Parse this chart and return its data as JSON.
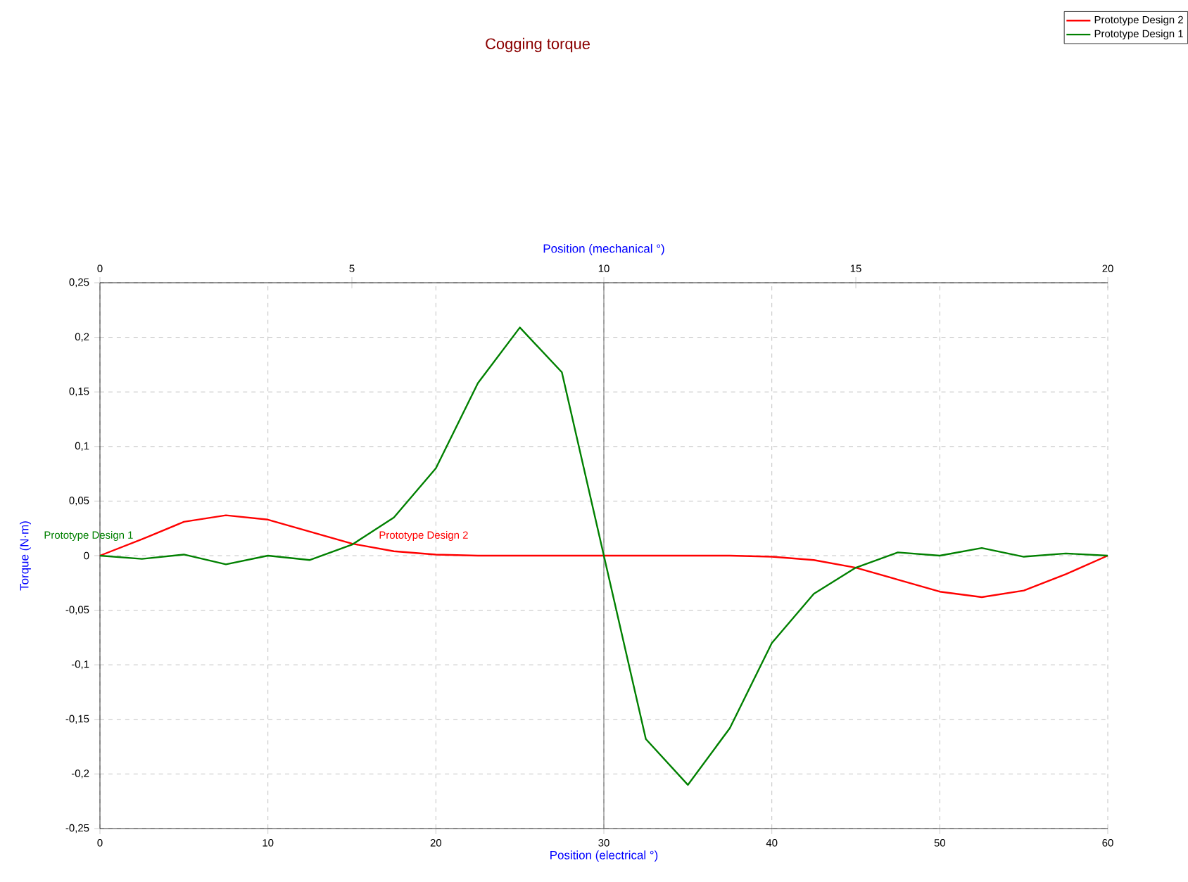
{
  "chart_data": {
    "type": "line",
    "title": "Cogging torque",
    "xlabel": "Position (electrical °)",
    "ylabel": "Torque (N·m)",
    "x2label": "Position (mechanical °)",
    "x": [
      0,
      2.5,
      5,
      7.5,
      10,
      12.5,
      15,
      17.5,
      20,
      22.5,
      25,
      27.5,
      30,
      32.5,
      35,
      37.5,
      40,
      42.5,
      45,
      47.5,
      50,
      52.5,
      55,
      57.5,
      60
    ],
    "series": [
      {
        "name": "Prototype Design 2",
        "color": "#ff0000",
        "values": [
          0,
          0.015,
          0.031,
          0.037,
          0.033,
          0.022,
          0.011,
          0.004,
          0.001,
          0,
          0,
          0,
          0,
          0,
          0,
          0,
          -0.001,
          -0.004,
          -0.011,
          -0.022,
          -0.033,
          -0.038,
          -0.032,
          -0.017,
          0
        ]
      },
      {
        "name": "Prototype Design 1",
        "color": "#008000",
        "values": [
          0,
          -0.003,
          0.001,
          -0.008,
          0,
          -0.004,
          0.01,
          0.035,
          0.08,
          0.158,
          0.209,
          0.168,
          0,
          -0.168,
          -0.21,
          -0.158,
          -0.08,
          -0.035,
          -0.011,
          0.003,
          0,
          0.007,
          -0.001,
          0.002,
          0
        ]
      }
    ],
    "annotations": [
      "Prototype Design 2",
      "Prototype Design 1"
    ],
    "xlim": [
      0,
      60
    ],
    "xticks": [
      0,
      10,
      20,
      30,
      40,
      50,
      60
    ],
    "x2lim": [
      0,
      20
    ],
    "x2ticks": [
      0,
      5,
      10,
      15,
      20
    ],
    "ylim": [
      -0.25,
      0.25
    ],
    "yticks": [
      {
        "value": -0.25,
        "label": "-0,25"
      },
      {
        "value": -0.2,
        "label": "-0,2"
      },
      {
        "value": -0.15,
        "label": "-0,15"
      },
      {
        "value": -0.1,
        "label": "-0,1"
      },
      {
        "value": -0.05,
        "label": "-0,05"
      },
      0,
      {
        "value": 0.05,
        "label": "0,05"
      },
      {
        "value": 0.1,
        "label": "0,1"
      },
      {
        "value": 0.15,
        "label": "0,15"
      },
      {
        "value": 0.2,
        "label": "0,2"
      },
      {
        "value": 0.25,
        "label": "0,25"
      }
    ],
    "ref_lines": [
      {
        "axis": "x",
        "value": 30,
        "color": "#404040"
      }
    ],
    "grid": true,
    "legend": "top right",
    "line_style": "solid"
  }
}
